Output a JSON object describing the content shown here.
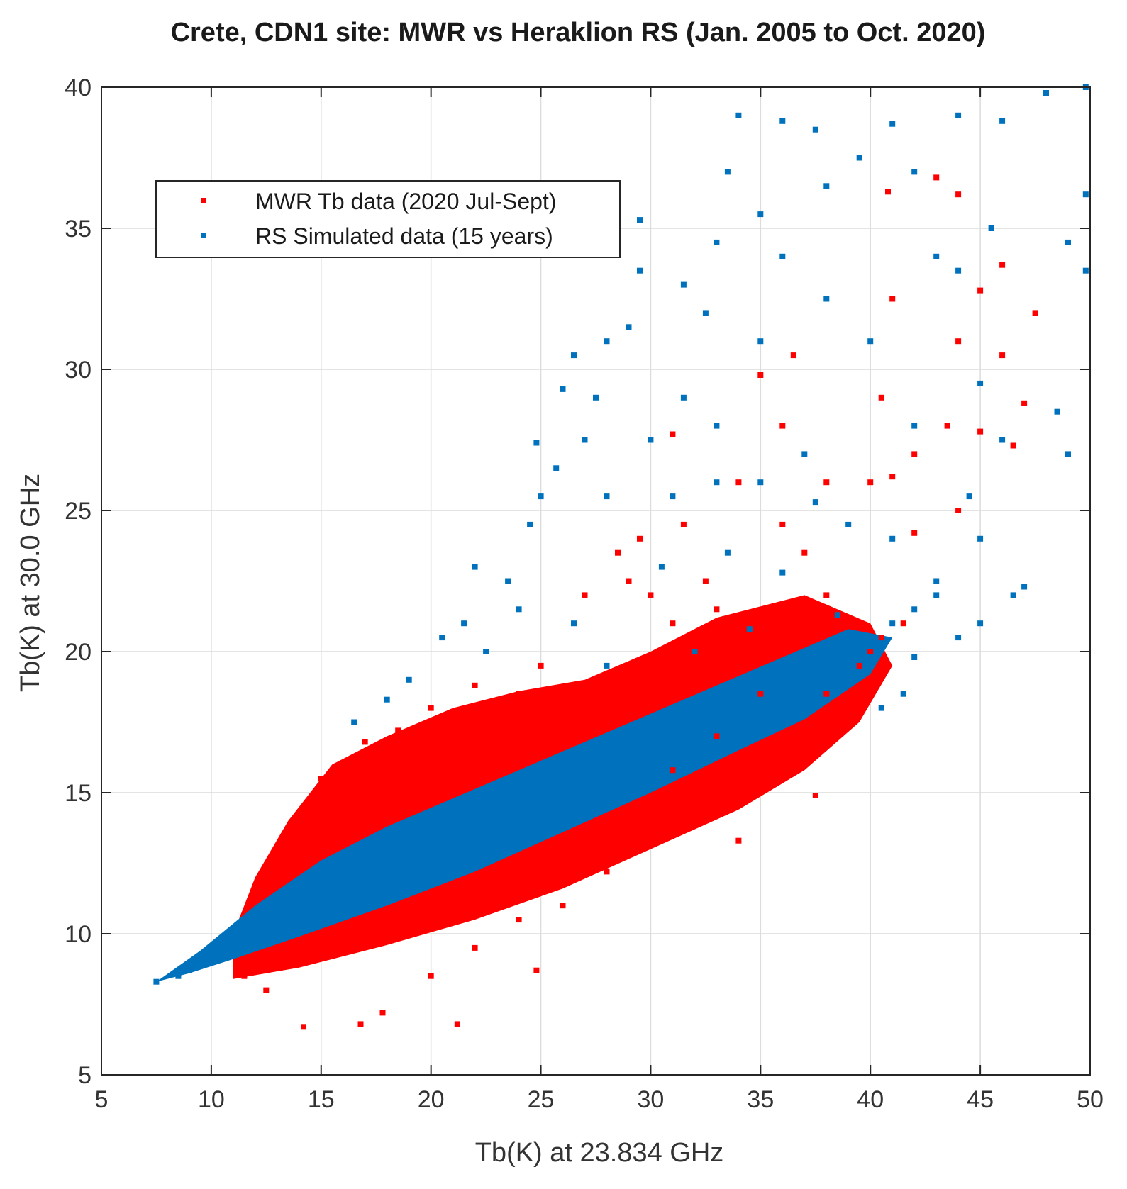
{
  "chart_data": {
    "type": "scatter",
    "title": "Crete, CDN1 site: MWR vs Heraklion RS (Jan. 2005 to Oct. 2020)",
    "xlabel": "Tb(K) at 23.834 GHz",
    "ylabel": "Tb(K) at 30.0 GHz",
    "xlim": [
      5,
      50
    ],
    "ylim": [
      5,
      40
    ],
    "xticks": [
      "5",
      "10",
      "15",
      "20",
      "25",
      "30",
      "35",
      "40",
      "45",
      "50"
    ],
    "yticks": [
      "5",
      "10",
      "15",
      "20",
      "25",
      "30",
      "35",
      "40"
    ],
    "grid": true,
    "legend_position": "upper-left",
    "series": [
      {
        "name": "MWR Tb data (2020 Jul-Sept)",
        "color": "#ff0000",
        "description": "dense red cloud spread around the simulated trend",
        "points": [
          [
            12.0,
            11.5
          ],
          [
            14.0,
            14.0
          ],
          [
            15.0,
            15.5
          ],
          [
            17.0,
            16.8
          ],
          [
            16.5,
            15.2
          ],
          [
            18.5,
            17.2
          ],
          [
            20.0,
            18.0
          ],
          [
            22.0,
            18.8
          ],
          [
            24.0,
            18.5
          ],
          [
            25.0,
            19.5
          ],
          [
            26.0,
            17.5
          ],
          [
            28.0,
            18.4
          ],
          [
            30.0,
            18.5
          ],
          [
            31.0,
            21.0
          ],
          [
            30.0,
            22.0
          ],
          [
            29.0,
            22.5
          ],
          [
            33.0,
            21.5
          ],
          [
            35.0,
            21.0
          ],
          [
            36.5,
            20.5
          ],
          [
            38.0,
            22.0
          ],
          [
            37.0,
            23.5
          ],
          [
            36.0,
            24.5
          ],
          [
            34.0,
            26.0
          ],
          [
            36.0,
            28.0
          ],
          [
            38.0,
            26.0
          ],
          [
            40.0,
            26.0
          ],
          [
            41.0,
            26.2
          ],
          [
            42.0,
            27.0
          ],
          [
            44.0,
            25.0
          ],
          [
            44.0,
            31.0
          ],
          [
            45.0,
            32.8
          ],
          [
            46.0,
            33.7
          ],
          [
            46.0,
            30.5
          ],
          [
            47.5,
            32.0
          ],
          [
            47.0,
            28.8
          ],
          [
            46.5,
            27.3
          ],
          [
            40.5,
            29.0
          ],
          [
            41.0,
            32.5
          ],
          [
            43.0,
            36.8
          ],
          [
            44.0,
            36.2
          ],
          [
            40.8,
            36.3
          ],
          [
            45.0,
            27.8
          ],
          [
            43.5,
            28.0
          ],
          [
            42.0,
            24.2
          ],
          [
            38.0,
            17.5
          ],
          [
            39.0,
            18.5
          ],
          [
            40.0,
            20.0
          ],
          [
            41.5,
            21.0
          ],
          [
            34.0,
            13.3
          ],
          [
            37.5,
            14.9
          ],
          [
            36.0,
            17.0
          ],
          [
            35.0,
            18.5
          ],
          [
            33.0,
            17.0
          ],
          [
            31.0,
            15.8
          ],
          [
            29.0,
            14.5
          ],
          [
            27.0,
            13.5
          ],
          [
            25.0,
            12.5
          ],
          [
            23.0,
            11.5
          ],
          [
            21.0,
            10.8
          ],
          [
            19.0,
            10.2
          ],
          [
            17.0,
            9.7
          ],
          [
            15.0,
            9.3
          ],
          [
            13.0,
            8.8
          ],
          [
            11.5,
            8.5
          ],
          [
            12.5,
            8.0
          ],
          [
            14.2,
            6.7
          ],
          [
            16.8,
            6.8
          ],
          [
            21.2,
            6.8
          ],
          [
            24.8,
            8.7
          ],
          [
            17.8,
            7.2
          ],
          [
            20.0,
            8.5
          ],
          [
            22.0,
            9.5
          ],
          [
            24.0,
            10.5
          ],
          [
            26.0,
            11.0
          ],
          [
            28.0,
            12.2
          ],
          [
            30.0,
            13.5
          ],
          [
            32.0,
            14.3
          ],
          [
            34.0,
            15.5
          ],
          [
            36.0,
            16.5
          ],
          [
            38.0,
            18.5
          ],
          [
            39.5,
            19.5
          ],
          [
            40.5,
            20.5
          ],
          [
            28.5,
            23.5
          ],
          [
            29.5,
            24.0
          ],
          [
            31.5,
            24.5
          ],
          [
            27.0,
            22.0
          ],
          [
            32.5,
            22.5
          ],
          [
            31.0,
            27.7
          ],
          [
            35.0,
            29.8
          ],
          [
            36.5,
            30.5
          ]
        ]
      },
      {
        "name": "RS Simulated data  (15 years)",
        "color": "#0072bd",
        "description": "dense blue band along the linear trend with sparse outliers above",
        "points": [
          [
            7.5,
            8.3
          ],
          [
            8.5,
            8.5
          ],
          [
            9.0,
            8.7
          ],
          [
            10.0,
            9.0
          ],
          [
            11.0,
            9.6
          ],
          [
            12.0,
            10.2
          ],
          [
            13.0,
            10.7
          ],
          [
            14.0,
            11.2
          ],
          [
            15.0,
            11.7
          ],
          [
            16.0,
            12.2
          ],
          [
            17.0,
            12.7
          ],
          [
            18.0,
            13.1
          ],
          [
            19.0,
            13.6
          ],
          [
            20.0,
            14.0
          ],
          [
            21.0,
            14.3
          ],
          [
            22.0,
            14.7
          ],
          [
            23.0,
            15.0
          ],
          [
            24.0,
            15.4
          ],
          [
            25.0,
            15.7
          ],
          [
            26.0,
            16.0
          ],
          [
            27.0,
            16.4
          ],
          [
            28.0,
            16.7
          ],
          [
            29.0,
            17.0
          ],
          [
            30.0,
            17.3
          ],
          [
            31.0,
            17.6
          ],
          [
            32.0,
            17.9
          ],
          [
            33.0,
            18.2
          ],
          [
            34.0,
            18.6
          ],
          [
            35.0,
            18.9
          ],
          [
            36.0,
            19.2
          ],
          [
            37.0,
            19.5
          ],
          [
            38.0,
            19.8
          ],
          [
            39.0,
            20.2
          ],
          [
            40.0,
            20.5
          ],
          [
            41.0,
            21.0
          ],
          [
            42.0,
            21.5
          ],
          [
            43.0,
            22.0
          ],
          [
            44.0,
            20.5
          ],
          [
            45.0,
            21.0
          ],
          [
            46.5,
            22.0
          ],
          [
            47.0,
            22.3
          ],
          [
            20.5,
            20.5
          ],
          [
            21.5,
            21.0
          ],
          [
            22.0,
            23.0
          ],
          [
            23.5,
            22.5
          ],
          [
            24.5,
            24.5
          ],
          [
            25.0,
            25.5
          ],
          [
            24.8,
            27.4
          ],
          [
            25.7,
            26.5
          ],
          [
            26.0,
            29.3
          ],
          [
            26.5,
            30.5
          ],
          [
            27.5,
            29.0
          ],
          [
            28.0,
            31.0
          ],
          [
            29.0,
            31.5
          ],
          [
            29.5,
            33.5
          ],
          [
            29.5,
            35.3
          ],
          [
            31.5,
            33.0
          ],
          [
            32.5,
            32.0
          ],
          [
            33.0,
            34.5
          ],
          [
            33.5,
            37.0
          ],
          [
            34.0,
            39.0
          ],
          [
            35.0,
            35.5
          ],
          [
            36.0,
            38.8
          ],
          [
            37.5,
            38.5
          ],
          [
            38.0,
            36.5
          ],
          [
            39.5,
            37.5
          ],
          [
            41.0,
            38.7
          ],
          [
            42.0,
            37.0
          ],
          [
            44.0,
            39.0
          ],
          [
            46.0,
            38.8
          ],
          [
            48.0,
            39.8
          ],
          [
            49.8,
            40.0
          ],
          [
            49.8,
            36.2
          ],
          [
            49.8,
            33.5
          ],
          [
            49.0,
            34.5
          ],
          [
            48.5,
            28.5
          ],
          [
            49.0,
            27.0
          ],
          [
            45.0,
            29.5
          ],
          [
            46.0,
            27.5
          ],
          [
            44.5,
            25.5
          ],
          [
            45.0,
            24.0
          ],
          [
            43.0,
            22.5
          ],
          [
            40.0,
            31.0
          ],
          [
            38.0,
            32.5
          ],
          [
            36.0,
            34.0
          ],
          [
            35.0,
            31.0
          ],
          [
            33.0,
            28.0
          ],
          [
            31.5,
            29.0
          ],
          [
            30.0,
            27.5
          ],
          [
            28.0,
            25.5
          ],
          [
            27.0,
            27.5
          ],
          [
            31.0,
            25.5
          ],
          [
            33.0,
            26.0
          ],
          [
            35.0,
            26.0
          ],
          [
            37.5,
            25.3
          ],
          [
            39.0,
            24.5
          ],
          [
            41.0,
            24.0
          ],
          [
            36.0,
            22.8
          ],
          [
            33.5,
            23.5
          ],
          [
            30.5,
            23.0
          ],
          [
            19.0,
            19.0
          ],
          [
            18.0,
            18.3
          ],
          [
            16.5,
            17.5
          ],
          [
            22.5,
            20.0
          ],
          [
            24.0,
            21.5
          ],
          [
            26.5,
            21.0
          ],
          [
            28.0,
            19.5
          ],
          [
            32.0,
            20.0
          ],
          [
            34.5,
            20.8
          ],
          [
            38.5,
            21.3
          ],
          [
            40.5,
            18.0
          ],
          [
            41.5,
            18.5
          ],
          [
            42.0,
            19.8
          ],
          [
            37.0,
            27.0
          ],
          [
            42.0,
            28.0
          ],
          [
            43.0,
            34.0
          ],
          [
            45.5,
            35.0
          ],
          [
            44.0,
            33.5
          ]
        ]
      }
    ]
  }
}
